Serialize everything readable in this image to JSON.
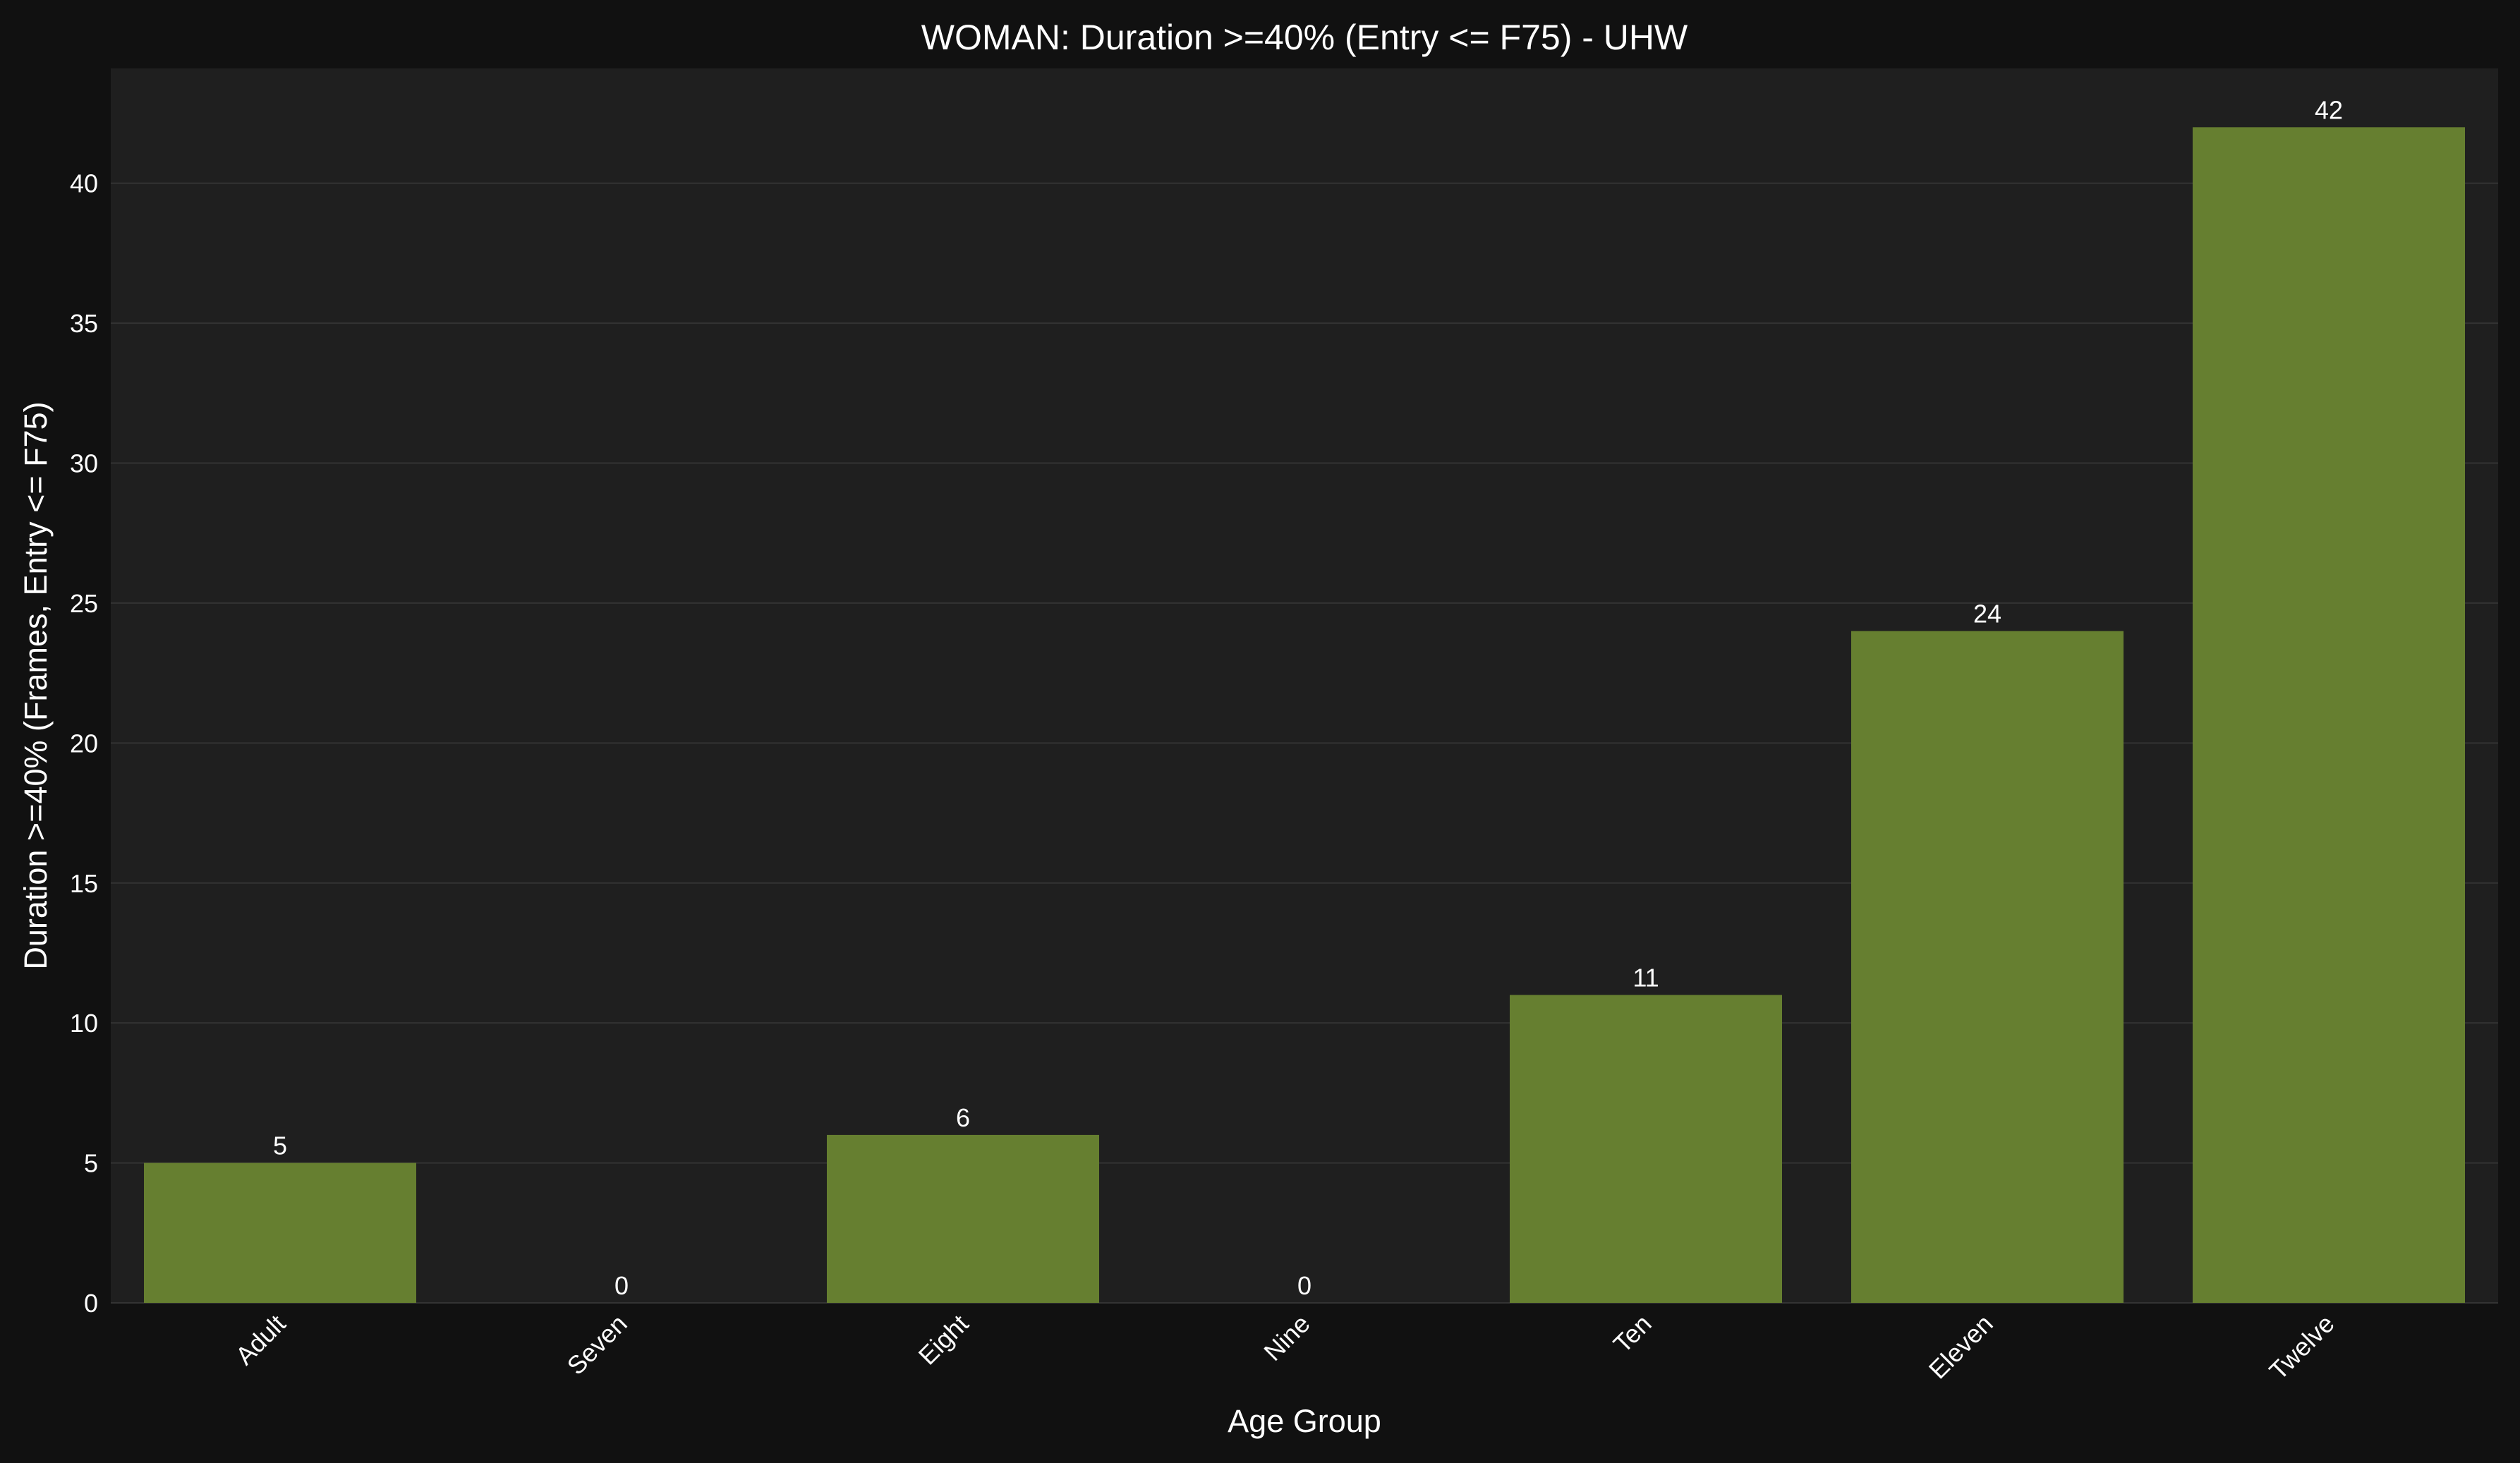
{
  "chart_data": {
    "type": "bar",
    "title": "WOMAN: Duration >=40% (Entry <= F75) - UHW",
    "xlabel": "Age Group",
    "ylabel": "Duration >=40% (Frames, Entry <= F75)",
    "categories": [
      "Adult",
      "Seven",
      "Eight",
      "Nine",
      "Ten",
      "Eleven",
      "Twelve"
    ],
    "values": [
      5,
      0,
      6,
      0,
      11,
      24,
      42
    ],
    "data_labels": [
      "5",
      "0",
      "6",
      "0",
      "11",
      "24",
      "42"
    ],
    "ylim": [
      0,
      44.1
    ],
    "yticks": [
      0,
      5,
      10,
      15,
      20,
      25,
      30,
      35,
      40
    ],
    "grid": true,
    "colors": {
      "bar": "#667f30",
      "background": "#111111",
      "plot_background": "#1f1f1f",
      "grid": "#333333",
      "text": "#ffffff"
    }
  }
}
